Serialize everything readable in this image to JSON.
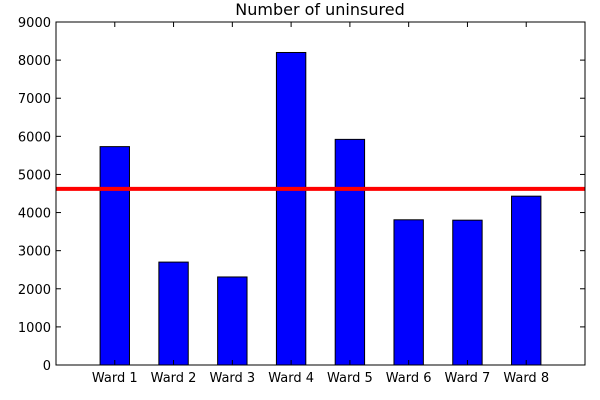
{
  "chart_data": {
    "type": "bar",
    "title": "Number of uninsured",
    "xlabel": "",
    "ylabel": "",
    "categories": [
      "Ward 1",
      "Ward 2",
      "Ward 3",
      "Ward 4",
      "Ward 5",
      "Ward 6",
      "Ward 7",
      "Ward 8"
    ],
    "values": [
      5730,
      2700,
      2310,
      8200,
      5920,
      3810,
      3800,
      4430
    ],
    "ylim": [
      0,
      9000
    ],
    "yticks": [
      0,
      1000,
      2000,
      3000,
      4000,
      5000,
      6000,
      7000,
      8000,
      9000
    ],
    "reference_line": {
      "y": 4620,
      "color": "#ff0000"
    },
    "bar_color": "#0000ff",
    "grid": false,
    "legend": "none"
  }
}
